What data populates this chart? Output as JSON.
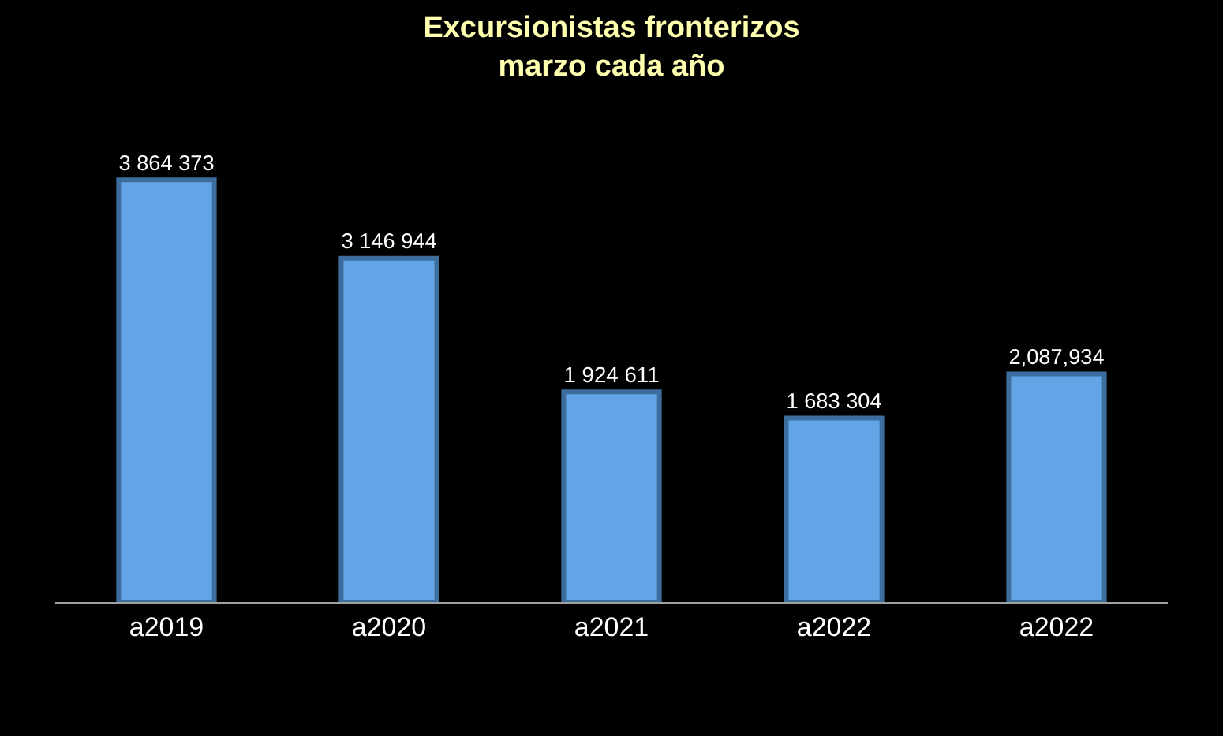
{
  "chart_data": {
    "type": "bar",
    "title": "Excursionistas fronterizos\nmarzo cada año",
    "categories": [
      "a2019",
      "a2020",
      "a2021",
      "a2022",
      "a2022"
    ],
    "values": [
      3864373,
      3146944,
      1924611,
      1683304,
      2087934
    ],
    "value_labels": [
      "3 864 373",
      "3 146 944",
      "1 924 611",
      "1 683 304",
      "2,087,934"
    ],
    "color": "#63a4e6"
  }
}
